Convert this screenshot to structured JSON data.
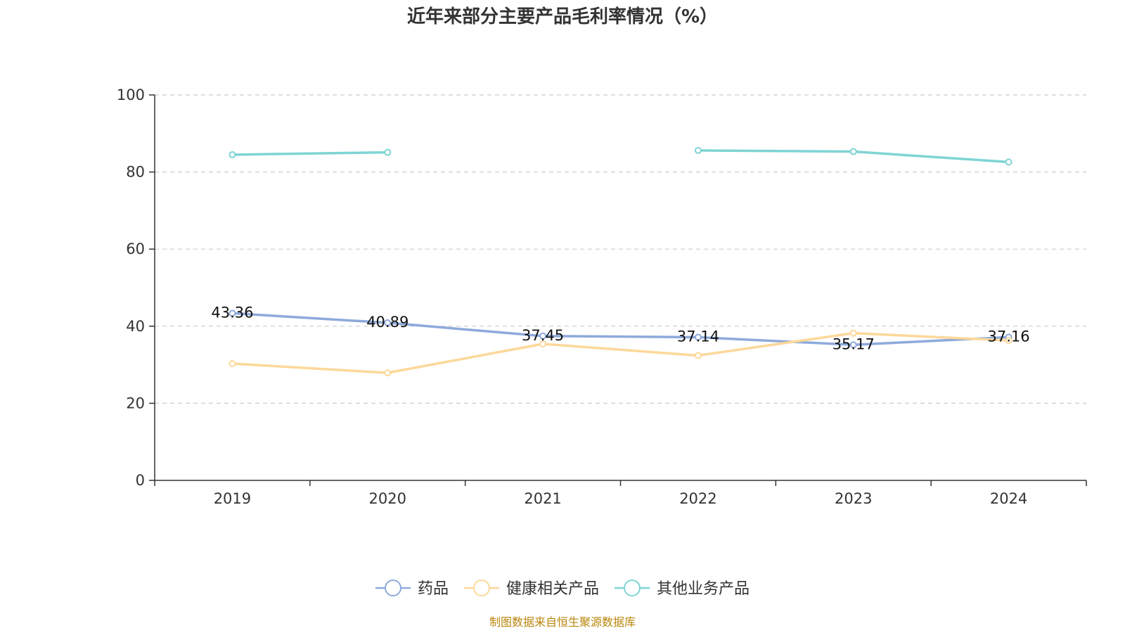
{
  "title": "近年来部分主要产品毛利率情况（%）",
  "source": "制图数据来自恒生聚源数据库",
  "source_color": "#b8860b",
  "chart_data": {
    "type": "line",
    "title": "近年来部分主要产品毛利率情况（%）",
    "xlabel": "",
    "ylabel": "",
    "categories": [
      "2019",
      "2020",
      "2021",
      "2022",
      "2023",
      "2024"
    ],
    "ylim": [
      0,
      100
    ],
    "yticks": [
      0,
      20,
      40,
      60,
      80,
      100
    ],
    "grid": "horizontal dashed",
    "legend_position": "bottom",
    "series": [
      {
        "name": "药品",
        "color": "#8eaadb",
        "values": [
          43.36,
          40.89,
          37.45,
          37.14,
          35.17,
          37.16
        ],
        "show_labels": true
      },
      {
        "name": "健康相关产品",
        "color": "#fdd89a",
        "values": [
          30.3,
          27.9,
          35.4,
          32.4,
          38.2,
          36.3
        ],
        "show_labels": false
      },
      {
        "name": "其他业务产品",
        "color": "#7fd4d4",
        "values": [
          84.5,
          85.1,
          null,
          85.6,
          85.3,
          82.6
        ],
        "show_labels": false
      }
    ]
  }
}
